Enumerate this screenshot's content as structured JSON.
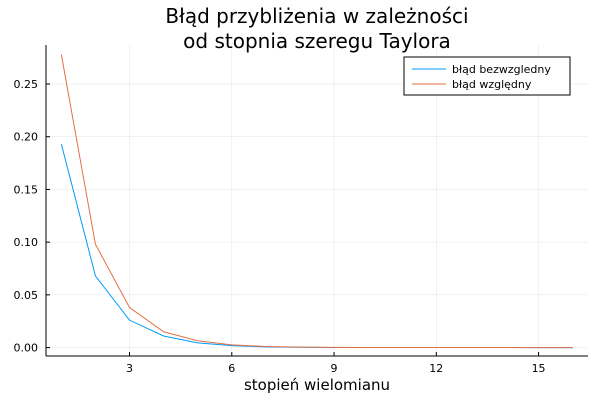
{
  "chart_data": {
    "type": "line",
    "title_lines": [
      "Błąd przybliżenia w zależności",
      "od stopnia szeregu Taylora"
    ],
    "xlabel": "stopień wielomianu",
    "ylabel": "",
    "x": [
      1,
      2,
      3,
      4,
      5,
      6,
      7,
      8,
      9,
      10,
      11,
      12,
      13,
      14,
      15,
      16
    ],
    "series": [
      {
        "name": "błąd bezwzgledny",
        "color": "#009AFA",
        "values": [
          0.193,
          0.068,
          0.026,
          0.011,
          0.0045,
          0.0018,
          0.0007,
          0.0003,
          0.0001,
          5e-05,
          2e-05,
          1e-05,
          5e-06,
          2e-06,
          1e-06,
          5e-07
        ]
      },
      {
        "name": "błąd względny",
        "color": "#E36F47",
        "values": [
          0.278,
          0.098,
          0.038,
          0.015,
          0.0065,
          0.0026,
          0.001,
          0.0004,
          0.00015,
          6e-05,
          2e-05,
          1e-05,
          4e-06,
          2e-06,
          1e-06,
          5e-07
        ]
      }
    ],
    "xlim": [
      0.55,
      16.45
    ],
    "ylim": [
      -0.008,
      0.287
    ],
    "xticks": [
      3,
      6,
      9,
      12,
      15
    ],
    "xtick_labels": [
      "3",
      "6",
      "9",
      "12",
      "15"
    ],
    "yticks": [
      0,
      0.05,
      0.1,
      0.15,
      0.2,
      0.25
    ],
    "ytick_labels": [
      "0.00",
      "0.05",
      "0.10",
      "0.15",
      "0.20",
      "0.25"
    ],
    "grid": true,
    "legend_position": "top-right"
  }
}
